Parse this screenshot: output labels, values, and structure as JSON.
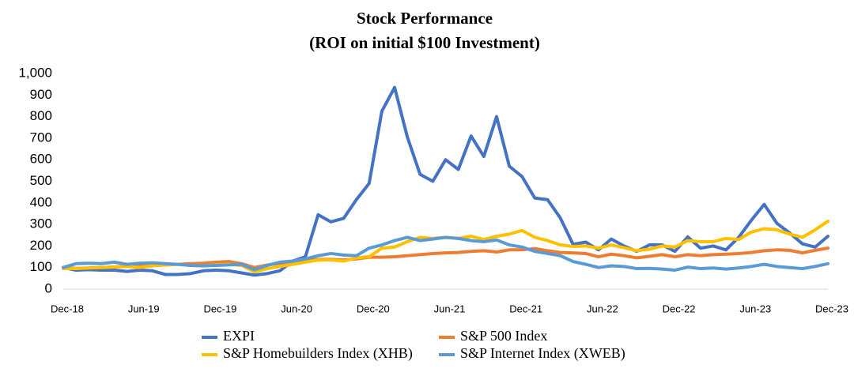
{
  "chart_data": {
    "type": "line",
    "title": "Stock Performance",
    "subtitle": "(ROI on initial $100 Investment)",
    "categories": [
      "Dec-18",
      null,
      null,
      null,
      null,
      null,
      "Jun-19",
      null,
      null,
      null,
      null,
      null,
      "Dec-19",
      null,
      null,
      null,
      null,
      null,
      "Jun-20",
      null,
      null,
      null,
      null,
      null,
      "Dec-20",
      null,
      null,
      null,
      null,
      null,
      "Jun-21",
      null,
      null,
      null,
      null,
      null,
      "Dec-21",
      null,
      null,
      null,
      null,
      null,
      "Jun-22",
      null,
      null,
      null,
      null,
      null,
      "Dec-22",
      null,
      null,
      null,
      null,
      null,
      "Jun-23",
      null,
      null,
      null,
      null,
      null,
      "Dec-23"
    ],
    "series": [
      {
        "name": "EXPI",
        "color": "#4472c4",
        "values": [
          100,
          88,
          90,
          88,
          88,
          82,
          88,
          85,
          68,
          68,
          72,
          85,
          88,
          85,
          75,
          65,
          72,
          85,
          130,
          150,
          345,
          312,
          328,
          415,
          490,
          825,
          935,
          705,
          532,
          500,
          600,
          555,
          710,
          615,
          800,
          570,
          522,
          422,
          415,
          330,
          208,
          218,
          182,
          232,
          200,
          175,
          205,
          205,
          175,
          242,
          190,
          200,
          182,
          240,
          320,
          393,
          305,
          260,
          210,
          195,
          245
        ]
      },
      {
        "name": "S&P 500 Index",
        "color": "#ed7d31",
        "values": [
          100,
          96,
          98,
          100,
          103,
          106,
          108,
          110,
          112,
          115,
          118,
          120,
          125,
          128,
          118,
          100,
          112,
          120,
          126,
          132,
          138,
          138,
          135,
          140,
          148,
          148,
          150,
          155,
          160,
          165,
          168,
          170,
          175,
          178,
          172,
          182,
          182,
          188,
          178,
          170,
          168,
          165,
          150,
          162,
          155,
          145,
          152,
          160,
          150,
          160,
          155,
          160,
          162,
          165,
          170,
          178,
          182,
          180,
          168,
          180,
          190
        ]
      },
      {
        "name": "S&P Homebuilders Index (XHB)",
        "color": "#ffc000",
        "values": [
          95,
          95,
          98,
          100,
          102,
          105,
          100,
          108,
          112,
          115,
          110,
          108,
          112,
          115,
          110,
          80,
          95,
          105,
          115,
          125,
          135,
          135,
          130,
          145,
          150,
          190,
          195,
          220,
          240,
          235,
          240,
          235,
          245,
          230,
          245,
          255,
          272,
          240,
          225,
          205,
          198,
          200,
          190,
          205,
          192,
          178,
          185,
          200,
          195,
          225,
          220,
          220,
          235,
          230,
          265,
          280,
          275,
          255,
          240,
          275,
          315
        ]
      },
      {
        "name": "S&P Internet Index (XWEB)",
        "color": "#5b9bd5",
        "values": [
          100,
          118,
          120,
          118,
          125,
          115,
          120,
          122,
          118,
          115,
          110,
          108,
          110,
          112,
          115,
          90,
          110,
          125,
          130,
          140,
          155,
          165,
          158,
          155,
          190,
          205,
          225,
          240,
          225,
          232,
          240,
          235,
          225,
          220,
          228,
          205,
          195,
          175,
          165,
          155,
          128,
          115,
          100,
          108,
          105,
          95,
          96,
          93,
          88,
          102,
          95,
          98,
          93,
          98,
          105,
          115,
          105,
          100,
          95,
          105,
          118
        ]
      }
    ],
    "ylim": [
      0,
      1000
    ],
    "yticks": [
      0,
      100,
      200,
      300,
      400,
      500,
      600,
      700,
      800,
      900,
      {
        "value": 1000,
        "label": "1,000"
      }
    ]
  }
}
